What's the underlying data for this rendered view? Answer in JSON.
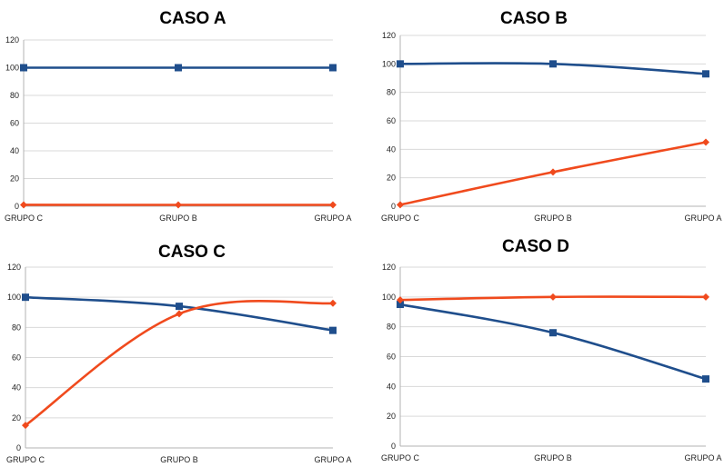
{
  "chart_data": [
    {
      "type": "line",
      "title": "CASO A",
      "categories": [
        "GRUPO C",
        "GRUPO B",
        "GRUPO A"
      ],
      "ylim": [
        0,
        120
      ],
      "yticks": [
        0,
        20,
        40,
        60,
        80,
        100,
        120
      ],
      "grid": true,
      "series": [
        {
          "color": "#1f4e8c",
          "marker": "square",
          "values": [
            100,
            100,
            100
          ]
        },
        {
          "color": "#f04a1d",
          "marker": "diamond",
          "values": [
            1,
            1,
            1
          ]
        }
      ]
    },
    {
      "type": "line",
      "title": "CASO B",
      "categories": [
        "GRUPO C",
        "GRUPO B",
        "GRUPO A"
      ],
      "ylim": [
        0,
        120
      ],
      "yticks": [
        0,
        20,
        40,
        60,
        80,
        100,
        120
      ],
      "grid": true,
      "series": [
        {
          "color": "#1f4e8c",
          "marker": "square",
          "values": [
            100,
            100,
            93
          ]
        },
        {
          "color": "#f04a1d",
          "marker": "diamond",
          "values": [
            1,
            24,
            45
          ]
        }
      ]
    },
    {
      "type": "line",
      "title": "CASO C",
      "categories": [
        "GRUPO C",
        "GRUPO B",
        "GRUPO A"
      ],
      "ylim": [
        0,
        120
      ],
      "yticks": [
        0,
        20,
        40,
        60,
        80,
        100,
        120
      ],
      "grid": true,
      "series": [
        {
          "color": "#1f4e8c",
          "marker": "square",
          "values": [
            100,
            94,
            78
          ]
        },
        {
          "color": "#f04a1d",
          "marker": "diamond",
          "values": [
            15,
            89,
            96
          ]
        }
      ]
    },
    {
      "type": "line",
      "title": "CASO D",
      "categories": [
        "GRUPO C",
        "GRUPO B",
        "GRUPO A"
      ],
      "ylim": [
        0,
        120
      ],
      "yticks": [
        0,
        20,
        40,
        60,
        80,
        100,
        120
      ],
      "grid": true,
      "series": [
        {
          "color": "#1f4e8c",
          "marker": "square",
          "values": [
            95,
            76,
            45
          ]
        },
        {
          "color": "#f04a1d",
          "marker": "diamond",
          "values": [
            98,
            100,
            100
          ]
        }
      ]
    }
  ]
}
